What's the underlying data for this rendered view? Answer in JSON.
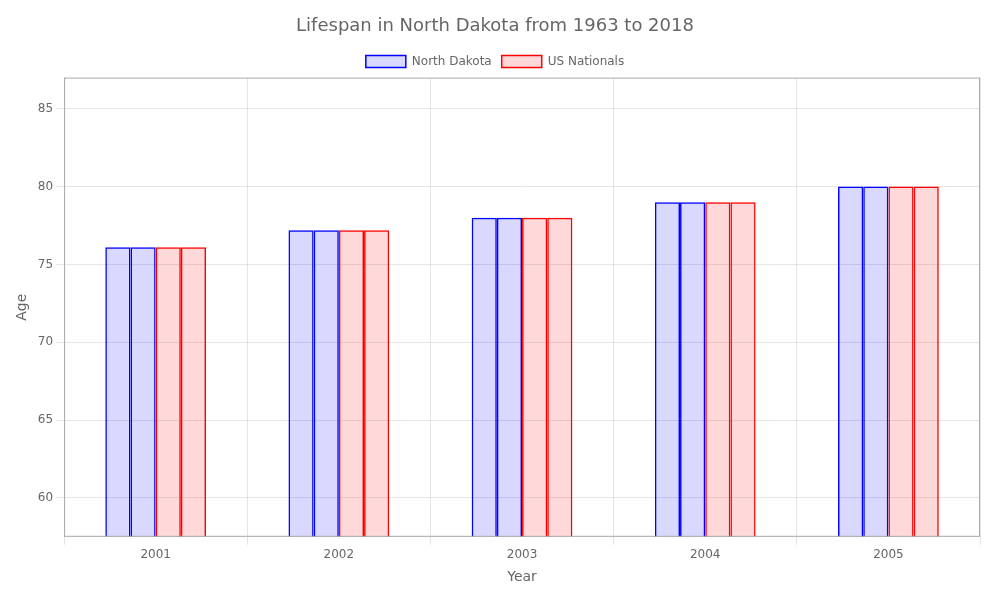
{
  "chart_data": {
    "type": "bar",
    "title": "Lifespan in North Dakota from 1963 to 2018",
    "xlabel": "Year",
    "ylabel": "Age",
    "categories": [
      "2001",
      "2002",
      "2003",
      "2004",
      "2005"
    ],
    "series": [
      {
        "name": "North Dakota",
        "color": "#0000ff",
        "values": [
          76.1,
          77.2,
          78.0,
          79.0,
          80.0
        ]
      },
      {
        "name": "US Nationals",
        "color": "#ff0000",
        "values": [
          76.1,
          77.2,
          78.0,
          79.0,
          80.0
        ]
      }
    ],
    "ylim": [
      57.5,
      87
    ],
    "yticks": [
      60,
      65,
      70,
      75,
      80,
      85
    ],
    "grid": true,
    "legend": "top"
  }
}
